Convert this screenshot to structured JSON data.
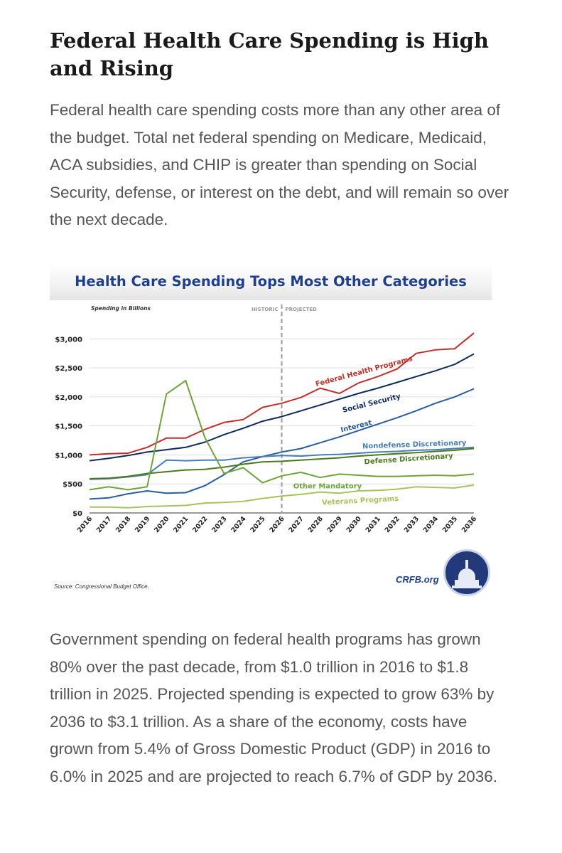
{
  "article": {
    "heading": "Federal Health Care Spending is High and Rising",
    "intro": "Federal health care spending costs more than any other area of the budget. Total net federal spending on Medicare, Medicaid, ACA subsidies, and CHIP is greater than spending on Social Security, defense, or interest on the debt, and will remain so over the next decade.",
    "outro": "Government spending on federal health programs has grown 80% over the past decade, from $1.0 trillion in 2016 to $1.8 trillion in 2025. Projected spending is expected to grow 63% by 2036 to $3.1 trillion. As a share of the economy, costs have grown from 5.4% of Gross Domestic Product (GDP) in 2016 to 6.0% in 2025 and are projected to reach 6.7% of GDP by 2036."
  },
  "figure": {
    "source": "Source: Congressional Budget Office.",
    "brand": "CRFB.org",
    "seal_icon": "capitol-dome-icon"
  },
  "chart_data": {
    "type": "line",
    "title": "Health Care Spending Tops Most Other Categories",
    "ylabel": "Spending in Billions",
    "xlabel": "",
    "ylim": [
      0,
      3200
    ],
    "y_ticks": [
      0,
      500,
      1000,
      1500,
      2000,
      2500,
      3000
    ],
    "y_tick_labels": [
      "$0",
      "$500",
      "$1,000",
      "$1,500",
      "$2,000",
      "$2,500",
      "$3,000"
    ],
    "x": [
      2016,
      2017,
      2018,
      2019,
      2020,
      2021,
      2022,
      2023,
      2024,
      2025,
      2026,
      2027,
      2028,
      2029,
      2030,
      2031,
      2032,
      2033,
      2034,
      2035,
      2036
    ],
    "x_tick_labels": [
      "2016",
      "2017",
      "2018",
      "2019",
      "2020",
      "2021",
      "2022",
      "2023",
      "2024",
      "2025",
      "2026",
      "2027",
      "2028",
      "2029",
      "2030",
      "2031",
      "2032",
      "2033",
      "2034",
      "2035",
      "2036"
    ],
    "divider": {
      "x": 2026,
      "left_label": "HISTORIC",
      "right_label": "PROJECTED"
    },
    "grid": true,
    "series": [
      {
        "name": "Federal Health Programs",
        "color": "#c0302b",
        "label_x": 2027.8,
        "label_y": 2180,
        "label_angle": -15,
        "values": [
          1000,
          1020,
          1030,
          1130,
          1290,
          1290,
          1440,
          1560,
          1610,
          1820,
          1890,
          1990,
          2150,
          2060,
          2240,
          2350,
          2480,
          2750,
          2810,
          2830,
          3100
        ]
      },
      {
        "name": "Social Security",
        "color": "#0f2a5c",
        "label_x": 2029.2,
        "label_y": 1730,
        "label_angle": -14,
        "values": [
          900,
          940,
          990,
          1050,
          1090,
          1130,
          1220,
          1350,
          1460,
          1580,
          1660,
          1760,
          1860,
          1960,
          2060,
          2150,
          2250,
          2350,
          2450,
          2560,
          2740
        ]
      },
      {
        "name": "Interest",
        "color": "#2a5d9e",
        "label_x": 2029.1,
        "label_y": 1390,
        "label_angle": -14,
        "values": [
          240,
          260,
          330,
          380,
          340,
          350,
          470,
          660,
          880,
          970,
          1050,
          1110,
          1210,
          1310,
          1420,
          1530,
          1640,
          1760,
          1890,
          2000,
          2140
        ]
      },
      {
        "name": "Nondefense Discretionary",
        "color": "#4a7fb5",
        "label_x": 2030.2,
        "label_y": 1110,
        "label_angle": -2,
        "values": [
          580,
          590,
          620,
          660,
          910,
          900,
          910,
          910,
          950,
          970,
          990,
          980,
          1000,
          1010,
          1030,
          1050,
          1060,
          1080,
          1090,
          1110,
          1130
        ]
      },
      {
        "name": "Defense Discretionary",
        "color": "#4d7a1f",
        "label_x": 2030.3,
        "label_y": 840,
        "label_angle": -4,
        "values": [
          590,
          600,
          630,
          680,
          710,
          740,
          750,
          790,
          840,
          880,
          890,
          910,
          930,
          950,
          980,
          1000,
          1020,
          1040,
          1060,
          1080,
          1110
        ]
      },
      {
        "name": "Other Mandatory",
        "color": "#6fa33a",
        "label_x": 2026.6,
        "label_y": 420,
        "label_angle": 0,
        "values": [
          400,
          450,
          400,
          450,
          2050,
          2280,
          1300,
          680,
          780,
          520,
          640,
          700,
          610,
          670,
          650,
          630,
          630,
          640,
          650,
          640,
          670
        ]
      },
      {
        "name": "Veterans Programs",
        "color": "#a7c45a",
        "label_x": 2028.1,
        "label_y": 140,
        "label_angle": -3,
        "values": [
          100,
          100,
          90,
          110,
          120,
          130,
          170,
          180,
          200,
          250,
          290,
          320,
          360,
          340,
          380,
          390,
          410,
          450,
          440,
          430,
          480
        ]
      }
    ]
  }
}
